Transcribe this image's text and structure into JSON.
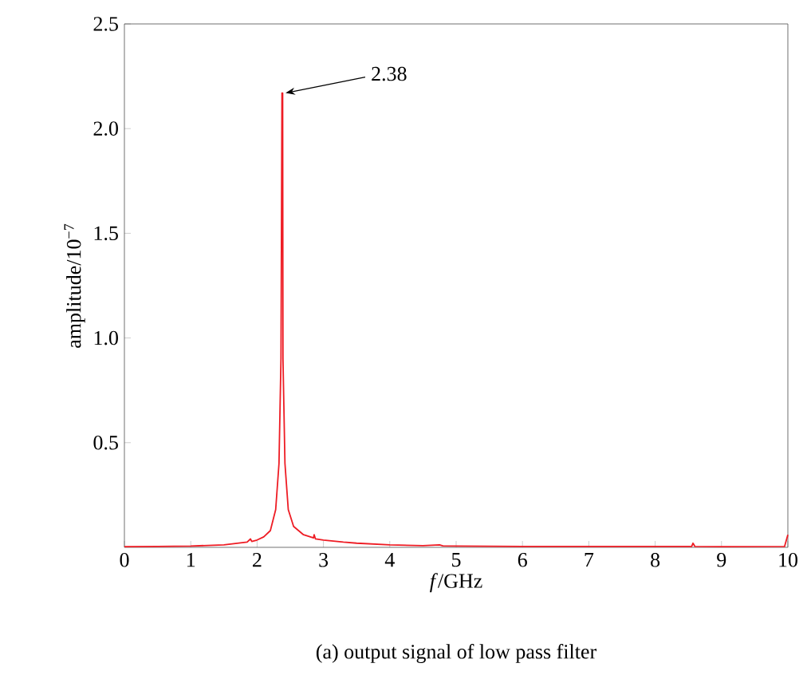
{
  "chart_data": {
    "type": "line",
    "title": "(a) output signal of low pass filter",
    "xlabel": "*f*/GHz",
    "ylabel": "amplitude/10$^{−7}$",
    "xlim": [
      0,
      10
    ],
    "xticks": [
      0,
      1,
      2,
      3,
      4,
      5,
      6,
      7,
      8,
      9,
      10
    ],
    "ylim": [
      0,
      2.5
    ],
    "yticks": [
      0.5,
      {
        "value": 1,
        "label": "1.0"
      },
      1.5,
      {
        "value": 2,
        "label": "2.0"
      },
      2.5
    ],
    "grid": false,
    "marker": "none",
    "line_style": "solid",
    "annotations": [
      {
        "text": "2.38",
        "x": 2.38,
        "y": 2.17
      }
    ],
    "series": [
      {
        "color": "#ee1c24",
        "x": [
          0,
          0.5,
          1.0,
          1.5,
          1.85,
          1.9,
          1.92,
          2.0,
          2.1,
          2.2,
          2.28,
          2.33,
          2.36,
          2.375,
          2.385,
          2.39,
          2.42,
          2.47,
          2.55,
          2.7,
          2.85,
          2.86,
          2.88,
          3.0,
          3.3,
          3.5,
          4.0,
          4.5,
          4.75,
          4.8,
          5,
          6,
          7,
          8,
          8.55,
          8.57,
          8.6,
          9,
          9.95,
          10
        ],
        "values": [
          0.003,
          0.004,
          0.006,
          0.012,
          0.025,
          0.04,
          0.028,
          0.035,
          0.05,
          0.08,
          0.18,
          0.4,
          0.9,
          2.17,
          2.17,
          0.9,
          0.4,
          0.18,
          0.1,
          0.06,
          0.045,
          0.06,
          0.04,
          0.035,
          0.025,
          0.02,
          0.012,
          0.008,
          0.012,
          0.007,
          0.006,
          0.004,
          0.004,
          0.004,
          0.004,
          0.02,
          0.004,
          0.003,
          0.004,
          0.06
        ]
      }
    ]
  }
}
